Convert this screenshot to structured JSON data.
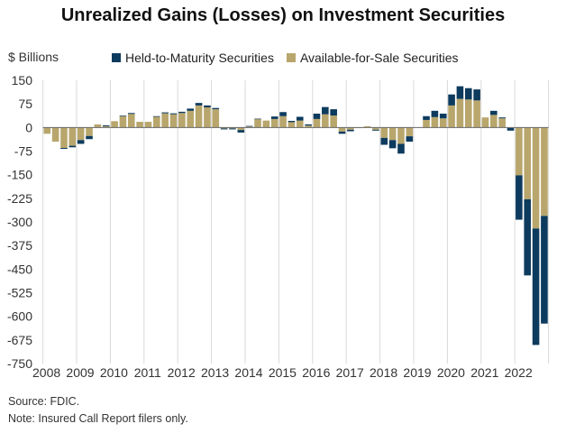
{
  "chart_data": {
    "type": "bar",
    "stacked": true,
    "title": "Unrealized Gains (Losses) on Investment Securities",
    "ylabel": "$ Billions",
    "xlabel": "",
    "ylim": [
      -750,
      150
    ],
    "yticks": [
      150,
      75,
      0,
      -75,
      -150,
      -225,
      -300,
      -375,
      -450,
      -525,
      -600,
      -675,
      -750
    ],
    "xtick_labels": [
      "2008",
      "2009",
      "2010",
      "2011",
      "2012",
      "2013",
      "2014",
      "2015",
      "2016",
      "2017",
      "2018",
      "2019",
      "2020",
      "2021",
      "2022"
    ],
    "frequency": "quarterly",
    "legend_position": "top",
    "grid": "vertical at year boundaries",
    "series": [
      {
        "name": "Held-to-Maturity Securities",
        "color": "#0d3b5e",
        "values": [
          0,
          0,
          -3,
          -5,
          -12,
          -10,
          0,
          3,
          0,
          2,
          3,
          0,
          0,
          2,
          3,
          3,
          4,
          7,
          8,
          6,
          4,
          -3,
          -3,
          -8,
          2,
          1,
          0,
          8,
          13,
          4,
          12,
          4,
          17,
          23,
          20,
          -7,
          -5,
          0,
          0,
          -3,
          -22,
          -26,
          -31,
          -17,
          0,
          12,
          20,
          15,
          35,
          40,
          36,
          35,
          0,
          13,
          3,
          -8,
          -141,
          -242,
          -370,
          -342
        ]
      },
      {
        "name": "Available-for-Sale Securities",
        "color": "#b8a66c",
        "values": [
          -20,
          -45,
          -65,
          -58,
          -40,
          -27,
          10,
          4,
          20,
          36,
          43,
          18,
          18,
          34,
          45,
          42,
          46,
          53,
          70,
          64,
          58,
          -3,
          -3,
          -8,
          3,
          27,
          22,
          27,
          36,
          17,
          22,
          6,
          27,
          42,
          38,
          -13,
          -7,
          -2,
          4,
          -7,
          -33,
          -40,
          -52,
          -28,
          0,
          24,
          33,
          29,
          70,
          91,
          89,
          86,
          32,
          40,
          29,
          -2,
          -152,
          -228,
          -321,
          -281
        ]
      }
    ]
  },
  "notes": {
    "source": "Source: FDIC.",
    "note": "Note: Insured Call Report filers only."
  }
}
